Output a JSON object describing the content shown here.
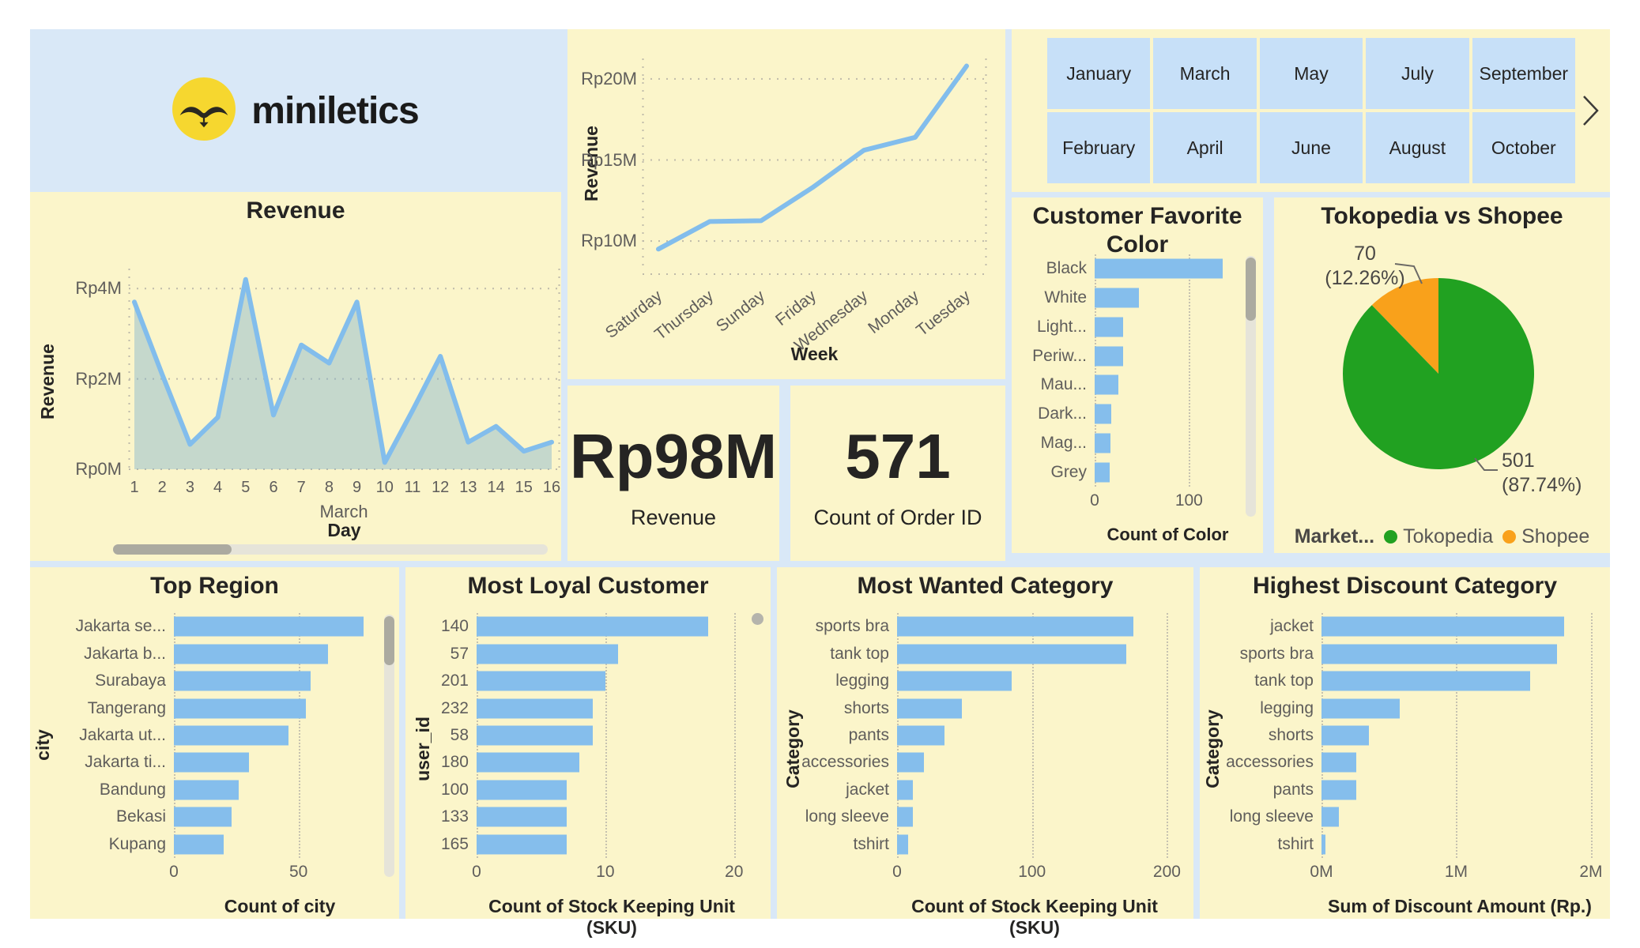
{
  "logo": {
    "text": "miniletics"
  },
  "colors": {
    "panel": "#FBF5CA",
    "board": "#D9E8F7",
    "button": "#C7E0F8",
    "bar": "#85BEEC",
    "line": "#82BDEC",
    "area_fill": "rgba(122,176,207,0.42)",
    "text_dark": "#252423",
    "text_gray": "#5F5D5B",
    "logo_yellow": "#F6D72F",
    "logo_dark": "#2A2820",
    "scroll_track": "#E6E4D9",
    "scroll_thumb": "#ABAAA0"
  },
  "month_slicer": {
    "rows": [
      [
        "January",
        "March",
        "May",
        "July",
        "September"
      ],
      [
        "February",
        "April",
        "June",
        "August",
        "October"
      ]
    ]
  },
  "cards": [
    {
      "value": "Rp98M",
      "label": "Revenue"
    },
    {
      "value": "571",
      "label": "Count of Order ID"
    }
  ],
  "chart_data": [
    {
      "id": "daily_revenue",
      "type": "area",
      "title": "Revenue",
      "xlabel": "Day",
      "ylabel": "Revenue",
      "x_group_label": "March",
      "categories": [
        "1",
        "2",
        "3",
        "4",
        "5",
        "6",
        "7",
        "8",
        "9",
        "10",
        "11",
        "12",
        "13",
        "14",
        "15",
        "16"
      ],
      "values": [
        3.7,
        2.1,
        0.55,
        1.15,
        4.2,
        1.2,
        2.75,
        2.35,
        3.7,
        0.15,
        1.3,
        2.5,
        0.6,
        0.95,
        0.4,
        0.6
      ],
      "unit": "Rp million",
      "yticks": [
        {
          "v": 0,
          "label": "Rp0M"
        },
        {
          "v": 2,
          "label": "Rp2M"
        },
        {
          "v": 4,
          "label": "Rp4M"
        }
      ],
      "ylim": [
        0,
        4.65
      ],
      "grid": "dotted"
    },
    {
      "id": "weekly_revenue",
      "type": "line",
      "title": "",
      "xlabel": "Week",
      "ylabel": "Revenue",
      "categories": [
        "Saturday",
        "Thursday",
        "Sunday",
        "Friday",
        "Wednesday",
        "Monday",
        "Tuesday"
      ],
      "values": [
        9.5,
        11.2,
        11.25,
        13.3,
        15.6,
        16.4,
        20.8
      ],
      "unit": "Rp million",
      "yticks": [
        {
          "v": 10,
          "label": "Rp10M"
        },
        {
          "v": 15,
          "label": "Rp15M"
        },
        {
          "v": 20,
          "label": "Rp20M"
        }
      ],
      "ylim": [
        8.15,
        21.85
      ],
      "grid": "dotted"
    },
    {
      "id": "favorite_color",
      "type": "bar",
      "title": "Customer Favorite Color",
      "xlabel": "Count of Color",
      "ylabel": "",
      "categories": [
        "Black",
        "White",
        "Light...",
        "Periw...",
        "Mau...",
        "Dark...",
        "Mag...",
        "Grey"
      ],
      "values": [
        136,
        47,
        30,
        30,
        25,
        18,
        17,
        16
      ],
      "xticks": [
        {
          "v": 0,
          "label": "0"
        },
        {
          "v": 100,
          "label": "100"
        }
      ],
      "xlim": [
        0,
        155
      ]
    },
    {
      "id": "marketplace_share",
      "type": "pie",
      "title": "Tokopedia vs Shopee",
      "legend_title": "Market...",
      "slices": [
        {
          "name": "Tokopedia",
          "value": 501,
          "pct_label": "(87.74%)",
          "color": "#21A121"
        },
        {
          "name": "Shopee",
          "value": 70,
          "pct_label": "(12.26%)",
          "color": "#F9A11B"
        }
      ]
    },
    {
      "id": "top_region",
      "type": "bar",
      "title": "Top Region",
      "xlabel": "Count of city",
      "ylabel": "city",
      "categories": [
        "Jakarta se...",
        "Jakarta b...",
        "Surabaya",
        "Tangerang",
        "Jakarta ut...",
        "Jakarta ti...",
        "Bandung",
        "Bekasi",
        "Kupang"
      ],
      "values": [
        76,
        62,
        55,
        53,
        46,
        30,
        26,
        23,
        20
      ],
      "xticks": [
        {
          "v": 0,
          "label": "0"
        },
        {
          "v": 50,
          "label": "50"
        }
      ],
      "xlim": [
        0,
        85
      ]
    },
    {
      "id": "loyal_customer",
      "type": "bar",
      "title": "Most Loyal Customer",
      "xlabel": "Count of Stock Keeping Unit (SKU)",
      "ylabel": "user_id",
      "categories": [
        "140",
        "57",
        "201",
        "232",
        "58",
        "180",
        "100",
        "133",
        "165"
      ],
      "values": [
        18,
        11,
        10,
        9,
        9,
        8,
        7,
        7,
        7
      ],
      "xticks": [
        {
          "v": 0,
          "label": "0"
        },
        {
          "v": 10,
          "label": "10"
        },
        {
          "v": 20,
          "label": "20"
        }
      ],
      "xlim": [
        0,
        21
      ]
    },
    {
      "id": "wanted_category",
      "type": "bar",
      "title": "Most Wanted Category",
      "xlabel": "Count of Stock Keeping Unit (SKU)",
      "ylabel": "Category",
      "categories": [
        "sports bra",
        "tank top",
        "legging",
        "shorts",
        "pants",
        "accessories",
        "jacket",
        "long sleeve",
        "tshirt"
      ],
      "values": [
        175,
        170,
        85,
        48,
        35,
        20,
        12,
        12,
        8
      ],
      "xticks": [
        {
          "v": 0,
          "label": "0"
        },
        {
          "v": 100,
          "label": "100"
        },
        {
          "v": 200,
          "label": "200"
        }
      ],
      "xlim": [
        0,
        205
      ]
    },
    {
      "id": "discount_category",
      "type": "bar",
      "title": "Highest Discount Category",
      "xlabel": "Sum of Discount Amount (Rp.)",
      "ylabel": "Category",
      "categories": [
        "jacket",
        "sports bra",
        "tank top",
        "legging",
        "shorts",
        "accessories",
        "pants",
        "long sleeve",
        "tshirt"
      ],
      "values": [
        1.8,
        1.75,
        1.55,
        0.58,
        0.35,
        0.26,
        0.26,
        0.13,
        0.03
      ],
      "unit": "Rp million",
      "xticks": [
        {
          "v": 0,
          "label": "0M"
        },
        {
          "v": 1,
          "label": "1M"
        },
        {
          "v": 2,
          "label": "2M"
        }
      ],
      "xlim": [
        0,
        2.1
      ]
    }
  ]
}
